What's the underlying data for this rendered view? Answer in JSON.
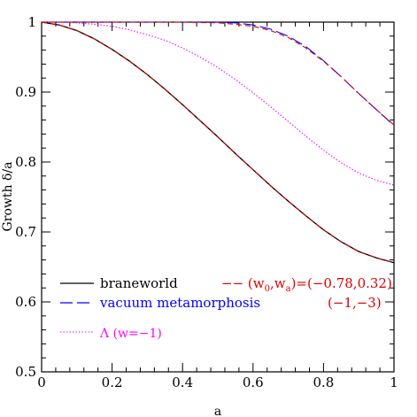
{
  "chart_data": {
    "type": "line",
    "xlabel": "a",
    "ylabel": "Growth δ/a",
    "xlim": [
      0,
      1
    ],
    "ylim": [
      0.5,
      1
    ],
    "xticks": [
      0,
      0.2,
      0.4,
      0.6,
      0.8,
      1
    ],
    "xtick_labels": [
      "0",
      "0.2",
      "0.4",
      "0.6",
      "0.8",
      "1"
    ],
    "yticks": [
      0.5,
      0.6,
      0.7,
      0.8,
      0.9,
      1
    ],
    "ytick_labels": [
      "0.5",
      "0.6",
      "0.7",
      "0.8",
      "0.9",
      "1"
    ],
    "grid": false,
    "legend_placement": "bottom-left",
    "series": [
      {
        "name": "braneworld",
        "color": "#000000",
        "dash": "solid",
        "x": [
          0,
          0.05,
          0.1,
          0.15,
          0.2,
          0.25,
          0.3,
          0.35,
          0.4,
          0.45,
          0.5,
          0.55,
          0.6,
          0.65,
          0.7,
          0.75,
          0.8,
          0.85,
          0.9,
          0.95,
          1.0
        ],
        "y": [
          1.0,
          0.996,
          0.988,
          0.976,
          0.961,
          0.944,
          0.925,
          0.904,
          0.882,
          0.859,
          0.836,
          0.812,
          0.789,
          0.766,
          0.744,
          0.723,
          0.703,
          0.686,
          0.672,
          0.663,
          0.656
        ]
      },
      {
        "name": "vacuum metamorphosis",
        "color": "#0000ff",
        "dash": "longdash",
        "x": [
          0,
          0.5,
          0.55,
          0.6,
          0.65,
          0.7,
          0.75,
          0.8,
          0.85,
          0.9,
          0.95,
          1.0
        ],
        "y": [
          1.0,
          1.0,
          0.999,
          0.996,
          0.99,
          0.98,
          0.965,
          0.945,
          0.922,
          0.898,
          0.875,
          0.852
        ]
      },
      {
        "name": "Λ (w=−1)",
        "color": "#ff00ff",
        "dash": "dotted",
        "x": [
          0,
          0.05,
          0.1,
          0.15,
          0.2,
          0.25,
          0.3,
          0.35,
          0.4,
          0.45,
          0.5,
          0.55,
          0.6,
          0.65,
          0.7,
          0.75,
          0.8,
          0.85,
          0.9,
          0.95,
          1.0
        ],
        "y": [
          1.0,
          1.0,
          0.999,
          0.997,
          0.994,
          0.989,
          0.982,
          0.974,
          0.963,
          0.95,
          0.935,
          0.918,
          0.899,
          0.879,
          0.858,
          0.837,
          0.817,
          0.799,
          0.784,
          0.774,
          0.767
        ]
      },
      {
        "name_parts": [
          "−− (w",
          "0",
          ",w",
          "a",
          ")=(−0.78,0.32)"
        ],
        "color": "#dd0000",
        "dash": "dashed",
        "x": [
          0,
          0.05,
          0.1,
          0.15,
          0.2,
          0.25,
          0.3,
          0.35,
          0.4,
          0.45,
          0.5,
          0.55,
          0.6,
          0.65,
          0.7,
          0.75,
          0.8,
          0.85,
          0.9,
          0.95,
          1.0
        ],
        "y": [
          1.0,
          0.996,
          0.988,
          0.976,
          0.961,
          0.944,
          0.925,
          0.904,
          0.882,
          0.859,
          0.836,
          0.812,
          0.789,
          0.766,
          0.744,
          0.723,
          0.703,
          0.686,
          0.672,
          0.663,
          0.656
        ]
      },
      {
        "name": "(−1,−3)",
        "color": "#dd0000",
        "dash": "dashed",
        "x": [
          0,
          0.4,
          0.5,
          0.55,
          0.6,
          0.65,
          0.7,
          0.75,
          0.8,
          0.85,
          0.9,
          0.95,
          1.0
        ],
        "y": [
          1.0,
          1.0,
          0.999,
          0.997,
          0.994,
          0.988,
          0.978,
          0.963,
          0.944,
          0.922,
          0.898,
          0.875,
          0.853
        ]
      }
    ]
  }
}
